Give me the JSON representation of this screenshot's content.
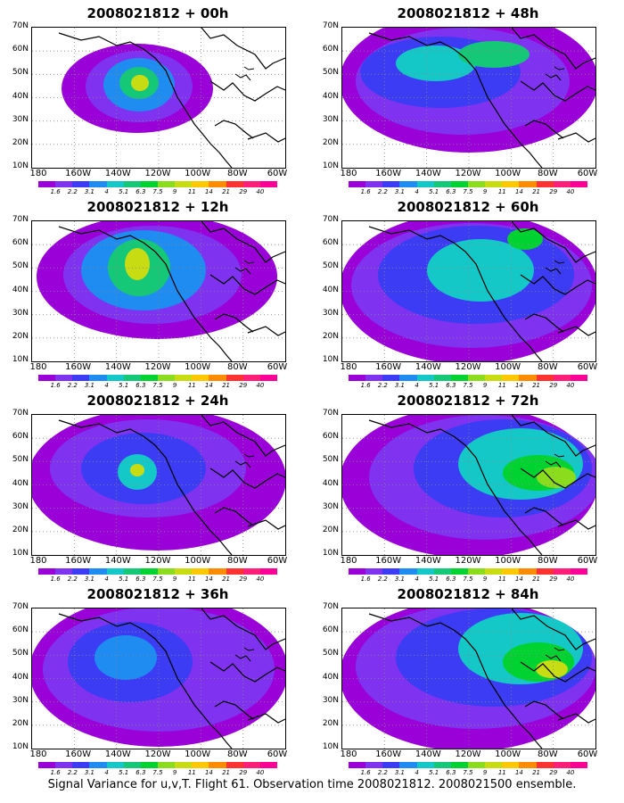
{
  "caption": "Signal Variance for u,v,T. Flight 61. Observation time 2008021812. 2008021500 ensemble.",
  "lat_labels": [
    "70N",
    "60N",
    "50N",
    "40N",
    "30N",
    "20N",
    "10N"
  ],
  "lon_labels": [
    "180",
    "160W",
    "140W",
    "120W",
    "100W",
    "80W",
    "60W"
  ],
  "colorbar": {
    "levels": [
      "1.6",
      "2.2",
      "3.1",
      "4",
      "5.1",
      "6.3",
      "7.5",
      "9",
      "11",
      "14",
      "21",
      "29",
      "40"
    ],
    "colors": [
      "#9a00d8",
      "#7f32f0",
      "#3c3cf5",
      "#1e8cf0",
      "#14c8c8",
      "#14c878",
      "#00d232",
      "#8cdc1e",
      "#c8dc14",
      "#ffc800",
      "#ff8c00",
      "#ff3232",
      "#ff1e78",
      "#ff0096"
    ]
  },
  "panels": [
    {
      "title": "2008021812 + 00h",
      "col": 0,
      "row": 0
    },
    {
      "title": "2008021812 + 12h",
      "col": 0,
      "row": 1
    },
    {
      "title": "2008021812 + 24h",
      "col": 0,
      "row": 2
    },
    {
      "title": "2008021812 + 36h",
      "col": 0,
      "row": 3
    },
    {
      "title": "2008021812 + 48h",
      "col": 1,
      "row": 0
    },
    {
      "title": "2008021812 + 60h",
      "col": 1,
      "row": 1
    },
    {
      "title": "2008021812 + 72h",
      "col": 1,
      "row": 2
    },
    {
      "title": "2008021812 + 84h",
      "col": 1,
      "row": 3
    }
  ]
}
